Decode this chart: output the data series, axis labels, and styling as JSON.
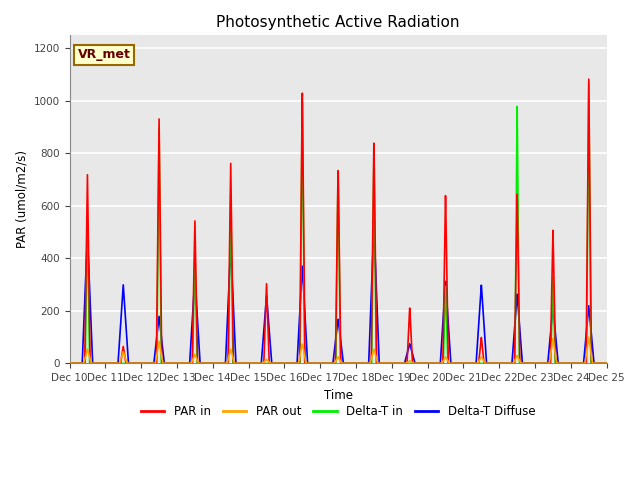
{
  "title": "Photosynthetic Active Radiation",
  "ylabel": "PAR (umol/m2/s)",
  "xlabel": "Time",
  "xlim_start": 0,
  "xlim_end": 360,
  "ylim": [
    0,
    1250
  ],
  "yticks": [
    0,
    200,
    400,
    600,
    800,
    1000,
    1200
  ],
  "xtick_labels": [
    "Dec 10",
    "Dec 11",
    "Dec 12",
    "Dec 13",
    "Dec 14",
    "Dec 15",
    "Dec 16",
    "Dec 17",
    "Dec 18",
    "Dec 19",
    "Dec 20",
    "Dec 21",
    "Dec 22",
    "Dec 23",
    "Dec 24",
    "Dec 25"
  ],
  "xtick_positions": [
    0,
    24,
    48,
    72,
    96,
    120,
    144,
    168,
    192,
    216,
    240,
    264,
    288,
    312,
    336,
    360
  ],
  "bg_color": "#e8e8e8",
  "grid_color": "white",
  "annotation_text": "VR_met",
  "annotation_bg": "#ffffcc",
  "annotation_border": "#996600",
  "annotation_text_color": "#660000",
  "colors": {
    "PAR in": "#ff0000",
    "PAR out": "#ffa500",
    "Delta-T in": "#00ee00",
    "Delta-T Diffuse": "#0000ff"
  },
  "legend_labels": [
    "PAR in",
    "PAR out",
    "Delta-T in",
    "Delta-T Diffuse"
  ],
  "day_peaks": {
    "PAR_in": [
      720,
      65,
      940,
      550,
      775,
      310,
      1055,
      755,
      860,
      215,
      650,
      100,
      650,
      510,
      1085,
      0
    ],
    "PAR_out": [
      55,
      45,
      85,
      35,
      55,
      15,
      75,
      25,
      55,
      10,
      25,
      25,
      30,
      95,
      100,
      0
    ],
    "DeltaT_in": [
      540,
      0,
      900,
      440,
      660,
      0,
      1025,
      760,
      800,
      0,
      300,
      0,
      990,
      330,
      1075,
      0
    ],
    "DeltaT_dif": [
      490,
      300,
      180,
      330,
      450,
      260,
      375,
      170,
      530,
      75,
      315,
      300,
      265,
      215,
      220,
      0
    ]
  },
  "hours_per_day": 24,
  "peak_hour": 12,
  "par_hw": 1.8,
  "green_hw": 1.5,
  "blue_hw": 3.5,
  "orange_hw": 2.5,
  "n_days": 15,
  "total_pts": 3600
}
